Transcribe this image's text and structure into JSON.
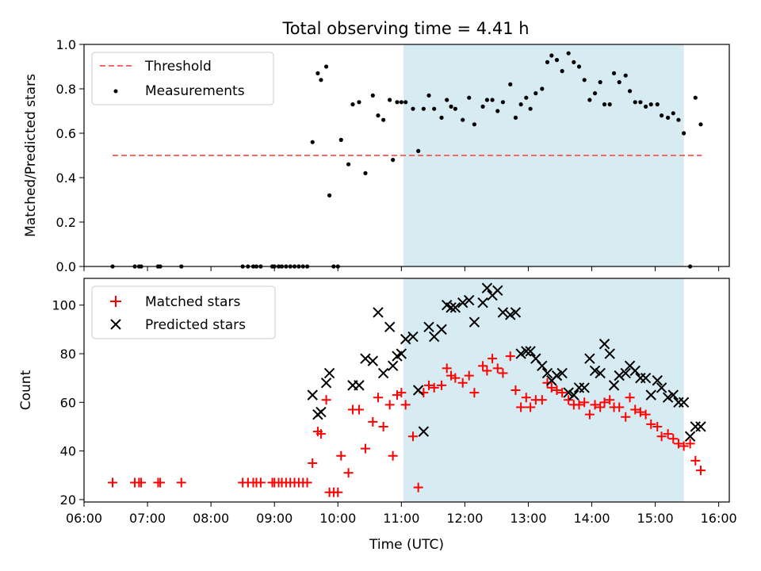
{
  "chart_data": [
    {
      "type": "scatter",
      "title": "Total observing time = 4.41 h",
      "xlabel": "",
      "ylabel": "Matched/Predicted stars",
      "xlim": [
        "06:00",
        "16:10"
      ],
      "ylim": [
        0,
        1.0
      ],
      "yticks": [
        0,
        0.2,
        0.4,
        0.6,
        0.8,
        1.0
      ],
      "ytick_labels": [
        "0.0",
        "0.2",
        "0.4",
        "0.6",
        "0.8",
        "1.0"
      ],
      "legend_position": "upper-left",
      "shaded_interval": {
        "start": "11:02",
        "end": "15:27",
        "color": "#add8e6"
      },
      "series": [
        {
          "name": "Threshold",
          "style": "dashed-line",
          "color": "#ff6666",
          "x": [
            "06:27",
            "15:44"
          ],
          "y": [
            0.5,
            0.5
          ]
        },
        {
          "name": "Measurements",
          "style": "dot",
          "color": "#000000",
          "x": [
            "06:27",
            "06:48",
            "06:52",
            "06:54",
            "07:10",
            "07:12",
            "07:32",
            "08:30",
            "08:35",
            "08:40",
            "08:43",
            "08:47",
            "08:58",
            "09:00",
            "09:04",
            "09:07",
            "09:11",
            "09:15",
            "09:19",
            "09:23",
            "09:27",
            "09:31",
            "09:36",
            "09:41",
            "09:44",
            "09:49",
            "09:52",
            "09:56",
            "10:00",
            "10:03",
            "10:10",
            "10:14",
            "10:20",
            "10:26",
            "10:33",
            "10:38",
            "10:43",
            "10:49",
            "10:52",
            "10:56",
            "11:00",
            "11:04",
            "11:11",
            "11:16",
            "11:21",
            "11:26",
            "11:31",
            "11:38",
            "11:43",
            "11:47",
            "11:51",
            "11:58",
            "12:04",
            "12:09",
            "12:17",
            "12:21",
            "12:26",
            "12:31",
            "12:36",
            "12:43",
            "12:48",
            "12:53",
            "12:58",
            "13:02",
            "13:07",
            "13:13",
            "13:18",
            "13:22",
            "13:27",
            "13:32",
            "13:38",
            "13:43",
            "13:48",
            "13:53",
            "13:58",
            "14:03",
            "14:08",
            "14:12",
            "14:17",
            "14:21",
            "14:26",
            "14:32",
            "14:36",
            "14:41",
            "14:46",
            "14:51",
            "14:56",
            "15:02",
            "15:06",
            "15:12",
            "15:17",
            "15:22",
            "15:27",
            "15:33",
            "15:38",
            "15:43"
          ],
          "y": [
            0.0,
            0.0,
            0.0,
            0.0,
            0.0,
            0.0,
            0.0,
            0.0,
            0.0,
            0.0,
            0.0,
            0.0,
            0.0,
            0.0,
            0.0,
            0.0,
            0.0,
            0.0,
            0.0,
            0.0,
            0.0,
            0.0,
            0.56,
            0.87,
            0.84,
            0.9,
            0.32,
            0.0,
            0.0,
            0.57,
            0.46,
            0.73,
            0.74,
            0.42,
            0.77,
            0.68,
            0.66,
            0.75,
            0.48,
            0.74,
            0.74,
            0.74,
            0.71,
            0.52,
            0.71,
            0.77,
            0.71,
            0.67,
            0.75,
            0.72,
            0.71,
            0.66,
            0.76,
            0.64,
            0.72,
            0.75,
            0.75,
            0.7,
            0.74,
            0.82,
            0.67,
            0.73,
            0.76,
            0.71,
            0.78,
            0.8,
            0.92,
            0.95,
            0.93,
            0.88,
            0.96,
            0.92,
            0.9,
            0.84,
            0.75,
            0.78,
            0.83,
            0.73,
            0.73,
            0.87,
            0.83,
            0.86,
            0.79,
            0.74,
            0.74,
            0.72,
            0.73,
            0.73,
            0.68,
            0.67,
            0.69,
            0.66,
            0.6,
            0.0,
            0.76,
            0.64
          ]
        }
      ]
    },
    {
      "type": "scatter",
      "title": "",
      "xlabel": "Time (UTC)",
      "ylabel": "Count",
      "xlim": [
        "06:00",
        "16:10"
      ],
      "ylim": [
        19,
        111
      ],
      "yticks": [
        20,
        40,
        60,
        80,
        100
      ],
      "ytick_labels": [
        "20",
        "40",
        "60",
        "80",
        "100"
      ],
      "xticks": [
        "06:00",
        "07:00",
        "08:00",
        "09:00",
        "10:00",
        "11:00",
        "12:00",
        "13:00",
        "14:00",
        "15:00",
        "16:00"
      ],
      "legend_position": "upper-left",
      "shaded_interval": {
        "start": "11:02",
        "end": "15:27",
        "color": "#add8e6"
      },
      "series": [
        {
          "name": "Matched stars",
          "style": "plus",
          "color": "#ff0000",
          "x": [
            "06:27",
            "06:48",
            "06:52",
            "06:54",
            "07:10",
            "07:12",
            "07:32",
            "08:30",
            "08:35",
            "08:40",
            "08:43",
            "08:47",
            "08:58",
            "09:00",
            "09:04",
            "09:07",
            "09:11",
            "09:15",
            "09:19",
            "09:23",
            "09:27",
            "09:31",
            "09:36",
            "09:41",
            "09:44",
            "09:49",
            "09:52",
            "09:56",
            "10:00",
            "10:03",
            "10:10",
            "10:14",
            "10:20",
            "10:26",
            "10:33",
            "10:38",
            "10:43",
            "10:49",
            "10:52",
            "10:56",
            "11:00",
            "11:04",
            "11:11",
            "11:16",
            "11:21",
            "11:26",
            "11:31",
            "11:38",
            "11:43",
            "11:47",
            "11:51",
            "11:58",
            "12:04",
            "12:09",
            "12:17",
            "12:21",
            "12:26",
            "12:31",
            "12:36",
            "12:43",
            "12:48",
            "12:53",
            "12:58",
            "13:02",
            "13:07",
            "13:13",
            "13:18",
            "13:22",
            "13:27",
            "13:32",
            "13:38",
            "13:43",
            "13:48",
            "13:53",
            "13:58",
            "14:03",
            "14:08",
            "14:12",
            "14:17",
            "14:21",
            "14:26",
            "14:32",
            "14:36",
            "14:41",
            "14:46",
            "14:51",
            "14:56",
            "15:02",
            "15:06",
            "15:12",
            "15:17",
            "15:22",
            "15:27",
            "15:33",
            "15:38",
            "15:43"
          ],
          "y": [
            27,
            27,
            27,
            27,
            27,
            27,
            27,
            27,
            27,
            27,
            27,
            27,
            27,
            27,
            27,
            27,
            27,
            27,
            27,
            27,
            27,
            27,
            35,
            48,
            47,
            61,
            23,
            23,
            23,
            38,
            31,
            57,
            57,
            41,
            52,
            62,
            50,
            59,
            38,
            63,
            64,
            59,
            46,
            25,
            64,
            67,
            66,
            67,
            74,
            71,
            70,
            68,
            71,
            64,
            75,
            73,
            78,
            74,
            72,
            79,
            65,
            58,
            62,
            58,
            61,
            61,
            68,
            66,
            65,
            64,
            61,
            59,
            59,
            60,
            55,
            59,
            58,
            60,
            61,
            58,
            58,
            54,
            62,
            57,
            56,
            55,
            51,
            50,
            46,
            47,
            45,
            43,
            42,
            43,
            36,
            32
          ]
        },
        {
          "name": "Predicted stars",
          "style": "x",
          "color": "#000000",
          "x": [
            "09:36",
            "09:41",
            "09:44",
            "09:49",
            "09:52",
            "10:14",
            "10:20",
            "10:26",
            "10:33",
            "10:38",
            "10:43",
            "10:49",
            "10:52",
            "10:56",
            "11:00",
            "11:04",
            "11:11",
            "11:16",
            "11:21",
            "11:26",
            "11:31",
            "11:38",
            "11:43",
            "11:47",
            "11:51",
            "11:58",
            "12:04",
            "12:09",
            "12:17",
            "12:21",
            "12:26",
            "12:31",
            "12:36",
            "12:43",
            "12:48",
            "12:53",
            "12:58",
            "13:02",
            "13:07",
            "13:13",
            "13:18",
            "13:22",
            "13:27",
            "13:32",
            "13:38",
            "13:43",
            "13:48",
            "13:53",
            "13:58",
            "14:03",
            "14:08",
            "14:12",
            "14:17",
            "14:21",
            "14:26",
            "14:32",
            "14:36",
            "14:41",
            "14:46",
            "14:51",
            "14:56",
            "15:02",
            "15:06",
            "15:12",
            "15:17",
            "15:22",
            "15:27",
            "15:33",
            "15:38",
            "15:43"
          ],
          "y": [
            63,
            55,
            56,
            68,
            72,
            67,
            67,
            78,
            77,
            97,
            72,
            91,
            75,
            79,
            80,
            86,
            87,
            65,
            48,
            91,
            87,
            90,
            100,
            99,
            99,
            101,
            102,
            93,
            101,
            107,
            104,
            106,
            97,
            96,
            97,
            80,
            81,
            81,
            78,
            75,
            72,
            69,
            71,
            72,
            64,
            63,
            66,
            66,
            78,
            73,
            72,
            84,
            80,
            67,
            71,
            72,
            75,
            73,
            70,
            70,
            63,
            69,
            66,
            62,
            63,
            60,
            60,
            46,
            50,
            50
          ]
        }
      ]
    }
  ]
}
